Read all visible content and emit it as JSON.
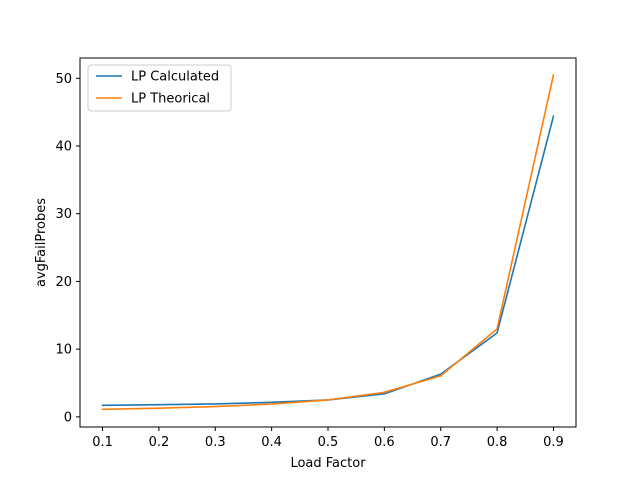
{
  "chart_data": {
    "type": "line",
    "title": "",
    "xlabel": "Load Factor",
    "ylabel": "avgFailProbes",
    "xlim": [
      0.06,
      0.94
    ],
    "ylim": [
      -1.5,
      53.0
    ],
    "xticks": [
      "0.1",
      "0.2",
      "0.3",
      "0.4",
      "0.5",
      "0.6",
      "0.7",
      "0.8",
      "0.9"
    ],
    "yticks": [
      "0",
      "10",
      "20",
      "30",
      "40",
      "50"
    ],
    "grid": false,
    "legend": "top-left",
    "x": [
      0.1,
      0.2,
      0.3,
      0.4,
      0.5,
      0.6,
      0.7,
      0.8,
      0.9
    ],
    "series": [
      {
        "name": "LP Calculated",
        "color": "#1f77b4",
        "values": [
          1.7,
          1.8,
          1.9,
          2.15,
          2.5,
          3.4,
          6.3,
          12.4,
          44.4
        ]
      },
      {
        "name": "LP Theorical",
        "color": "#ff7f0e",
        "values": [
          1.12,
          1.28,
          1.52,
          1.89,
          2.5,
          3.62,
          6.06,
          13.0,
          50.5
        ]
      }
    ]
  }
}
